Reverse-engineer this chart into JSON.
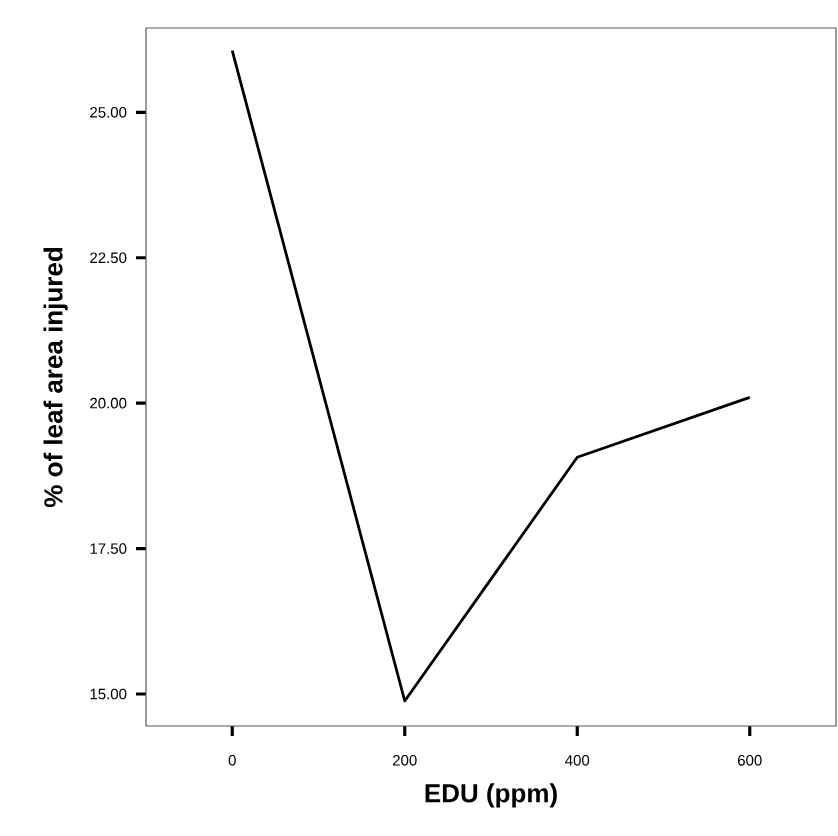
{
  "chart_data": {
    "type": "line",
    "xlabel": "EDU (ppm)",
    "ylabel": "% of leaf area injured",
    "x": [
      0,
      200,
      400,
      600
    ],
    "series": [
      {
        "color": "#000000",
        "values": [
          26.06,
          14.88,
          19.07,
          20.1
        ]
      }
    ],
    "xlim": [
      -100,
      700
    ],
    "ylim": [
      14.45,
      26.45
    ],
    "xticks": [
      0,
      200,
      400,
      600
    ],
    "yticks": [
      {
        "value": 15,
        "label": "15.00"
      },
      {
        "value": 17.5,
        "label": "17.50"
      },
      {
        "value": 20,
        "label": "20.00"
      },
      {
        "value": 22.5,
        "label": "22.50"
      },
      {
        "value": 25,
        "label": "25.00"
      }
    ],
    "marker": "none",
    "line_style": "solid"
  }
}
